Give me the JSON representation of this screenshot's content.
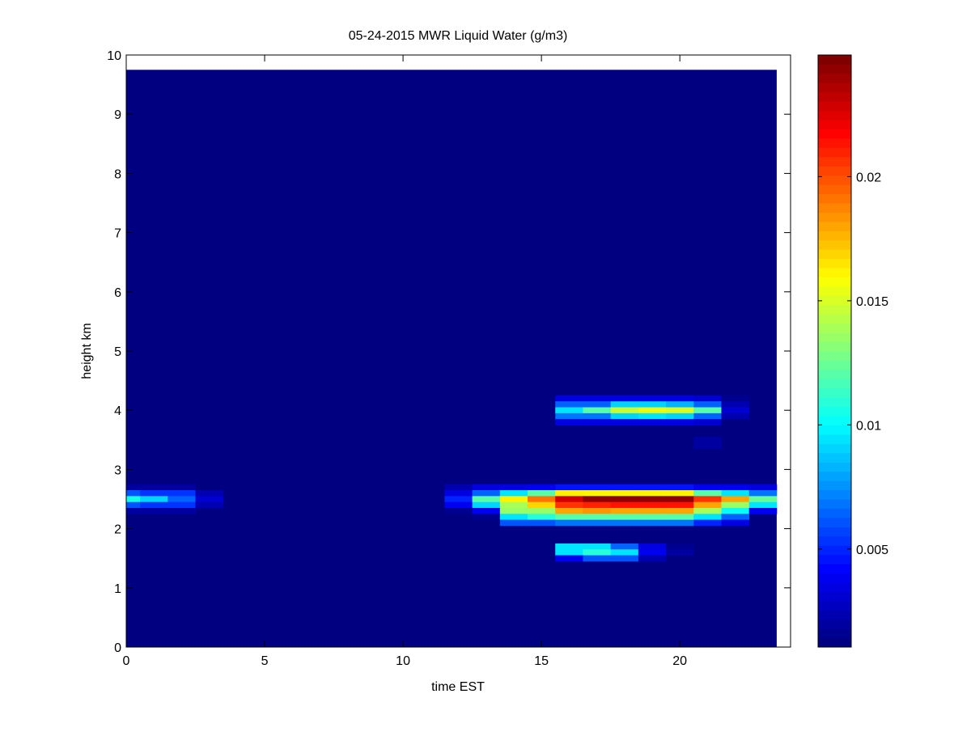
{
  "chart_data": {
    "type": "heatmap",
    "title": "05-24-2015 MWR Liquid Water (g/m3)",
    "xlabel": "time EST",
    "ylabel": "height km",
    "xlim": [
      0,
      24
    ],
    "ylim": [
      0,
      10
    ],
    "xticks": [
      0,
      5,
      10,
      15,
      20
    ],
    "yticks": [
      0,
      1,
      2,
      3,
      4,
      5,
      6,
      7,
      8,
      9,
      10
    ],
    "colormap": "jet",
    "clim": [
      0.00105,
      0.0249
    ],
    "colorbar_ticks": [
      0.005,
      0.01,
      0.015,
      0.02
    ],
    "colorbar_tick_labels": [
      "0.005",
      "0.01",
      "0.015",
      "0.02"
    ],
    "grid": false,
    "time_hours": [
      0,
      23
    ],
    "height_km": [
      0,
      9.7
    ],
    "height_step_km": 0.1,
    "background_value": 0.00105,
    "cells": [
      [
        0,
        2.7,
        0.002
      ],
      [
        1,
        2.7,
        0.002
      ],
      [
        2,
        2.7,
        0.002
      ],
      [
        0,
        2.6,
        0.006
      ],
      [
        1,
        2.6,
        0.0055
      ],
      [
        2,
        2.6,
        0.0055
      ],
      [
        3,
        2.6,
        0.0025
      ],
      [
        0,
        2.5,
        0.0105
      ],
      [
        1,
        2.5,
        0.009
      ],
      [
        2,
        2.5,
        0.0065
      ],
      [
        3,
        2.5,
        0.003
      ],
      [
        0,
        2.4,
        0.006
      ],
      [
        1,
        2.4,
        0.0055
      ],
      [
        2,
        2.4,
        0.0055
      ],
      [
        3,
        2.4,
        0.0025
      ],
      [
        0,
        2.3,
        0.0018
      ],
      [
        1,
        2.3,
        0.0018
      ],
      [
        2,
        2.3,
        0.0018
      ],
      [
        12,
        2.7,
        0.0025
      ],
      [
        13,
        2.7,
        0.0035
      ],
      [
        14,
        2.7,
        0.0035
      ],
      [
        15,
        2.7,
        0.004
      ],
      [
        16,
        2.7,
        0.0045
      ],
      [
        17,
        2.7,
        0.0045
      ],
      [
        18,
        2.7,
        0.0045
      ],
      [
        19,
        2.7,
        0.0045
      ],
      [
        20,
        2.7,
        0.0045
      ],
      [
        21,
        2.7,
        0.004
      ],
      [
        22,
        2.7,
        0.004
      ],
      [
        23,
        2.7,
        0.0035
      ],
      [
        12,
        2.6,
        0.0035
      ],
      [
        13,
        2.6,
        0.0065
      ],
      [
        14,
        2.6,
        0.0095
      ],
      [
        15,
        2.6,
        0.012
      ],
      [
        16,
        2.6,
        0.016
      ],
      [
        17,
        2.6,
        0.016
      ],
      [
        18,
        2.6,
        0.016
      ],
      [
        19,
        2.6,
        0.016
      ],
      [
        20,
        2.6,
        0.016
      ],
      [
        21,
        2.6,
        0.012
      ],
      [
        22,
        2.6,
        0.0095
      ],
      [
        23,
        2.6,
        0.007
      ],
      [
        12,
        2.5,
        0.005
      ],
      [
        13,
        2.5,
        0.012
      ],
      [
        14,
        2.5,
        0.016
      ],
      [
        15,
        2.5,
        0.019
      ],
      [
        16,
        2.5,
        0.023
      ],
      [
        17,
        2.5,
        0.0245
      ],
      [
        18,
        2.5,
        0.0245
      ],
      [
        19,
        2.5,
        0.0245
      ],
      [
        20,
        2.5,
        0.0245
      ],
      [
        21,
        2.5,
        0.0205
      ],
      [
        22,
        2.5,
        0.018
      ],
      [
        23,
        2.5,
        0.0125
      ],
      [
        12,
        2.4,
        0.004
      ],
      [
        13,
        2.4,
        0.009
      ],
      [
        14,
        2.4,
        0.014
      ],
      [
        15,
        2.4,
        0.017
      ],
      [
        16,
        2.4,
        0.0205
      ],
      [
        17,
        2.4,
        0.021
      ],
      [
        18,
        2.4,
        0.0215
      ],
      [
        19,
        2.4,
        0.0215
      ],
      [
        20,
        2.4,
        0.0215
      ],
      [
        21,
        2.4,
        0.018
      ],
      [
        22,
        2.4,
        0.0135
      ],
      [
        23,
        2.4,
        0.0095
      ],
      [
        12,
        2.3,
        0.0015
      ],
      [
        13,
        2.3,
        0.004
      ],
      [
        14,
        2.3,
        0.0135
      ],
      [
        15,
        2.3,
        0.0135
      ],
      [
        16,
        2.3,
        0.018
      ],
      [
        17,
        2.3,
        0.0185
      ],
      [
        18,
        2.3,
        0.018
      ],
      [
        19,
        2.3,
        0.018
      ],
      [
        20,
        2.3,
        0.018
      ],
      [
        21,
        2.3,
        0.014
      ],
      [
        22,
        2.3,
        0.01
      ],
      [
        23,
        2.3,
        0.004
      ],
      [
        13,
        2.2,
        0.0015
      ],
      [
        14,
        2.2,
        0.0095
      ],
      [
        15,
        2.2,
        0.011
      ],
      [
        16,
        2.2,
        0.012
      ],
      [
        17,
        2.2,
        0.012
      ],
      [
        18,
        2.2,
        0.012
      ],
      [
        19,
        2.2,
        0.012
      ],
      [
        20,
        2.2,
        0.012
      ],
      [
        21,
        2.2,
        0.0095
      ],
      [
        22,
        2.2,
        0.0065
      ],
      [
        13,
        2.1,
        0.0013
      ],
      [
        14,
        2.1,
        0.006
      ],
      [
        15,
        2.1,
        0.006
      ],
      [
        16,
        2.1,
        0.007
      ],
      [
        17,
        2.1,
        0.007
      ],
      [
        18,
        2.1,
        0.007
      ],
      [
        19,
        2.1,
        0.007
      ],
      [
        20,
        2.1,
        0.007
      ],
      [
        21,
        2.1,
        0.005
      ],
      [
        22,
        2.1,
        0.0035
      ],
      [
        16,
        4.2,
        0.0035
      ],
      [
        17,
        4.2,
        0.0035
      ],
      [
        18,
        4.2,
        0.0035
      ],
      [
        19,
        4.2,
        0.0035
      ],
      [
        20,
        4.2,
        0.0035
      ],
      [
        21,
        4.2,
        0.003
      ],
      [
        22,
        4.2,
        0.0015
      ],
      [
        16,
        4.1,
        0.0065
      ],
      [
        17,
        4.1,
        0.0065
      ],
      [
        18,
        4.1,
        0.009
      ],
      [
        19,
        4.1,
        0.009
      ],
      [
        20,
        4.1,
        0.0085
      ],
      [
        21,
        4.1,
        0.0065
      ],
      [
        22,
        4.1,
        0.0025
      ],
      [
        16,
        4.0,
        0.0095
      ],
      [
        17,
        4.0,
        0.012
      ],
      [
        18,
        4.0,
        0.0145
      ],
      [
        19,
        4.0,
        0.0155
      ],
      [
        20,
        4.0,
        0.015
      ],
      [
        21,
        4.0,
        0.012
      ],
      [
        22,
        4.0,
        0.003
      ],
      [
        16,
        3.9,
        0.007
      ],
      [
        17,
        3.9,
        0.007
      ],
      [
        18,
        3.9,
        0.009
      ],
      [
        19,
        3.9,
        0.0095
      ],
      [
        20,
        3.9,
        0.009
      ],
      [
        21,
        3.9,
        0.0065
      ],
      [
        22,
        3.9,
        0.0025
      ],
      [
        16,
        3.8,
        0.0035
      ],
      [
        17,
        3.8,
        0.0035
      ],
      [
        18,
        3.8,
        0.0035
      ],
      [
        19,
        3.8,
        0.0035
      ],
      [
        20,
        3.8,
        0.0035
      ],
      [
        21,
        3.8,
        0.003
      ],
      [
        22,
        3.8,
        0.0012
      ],
      [
        21,
        3.5,
        0.0018
      ],
      [
        21,
        3.4,
        0.0018
      ],
      [
        16,
        1.7,
        0.0095
      ],
      [
        17,
        1.7,
        0.0095
      ],
      [
        18,
        1.7,
        0.0065
      ],
      [
        19,
        1.7,
        0.0035
      ],
      [
        20,
        1.7,
        0.0015
      ],
      [
        16,
        1.6,
        0.0095
      ],
      [
        17,
        1.6,
        0.011
      ],
      [
        18,
        1.6,
        0.0095
      ],
      [
        19,
        1.6,
        0.004
      ],
      [
        20,
        1.6,
        0.0018
      ],
      [
        16,
        1.5,
        0.004
      ],
      [
        17,
        1.5,
        0.006
      ],
      [
        18,
        1.5,
        0.006
      ],
      [
        19,
        1.5,
        0.0025
      ]
    ]
  }
}
